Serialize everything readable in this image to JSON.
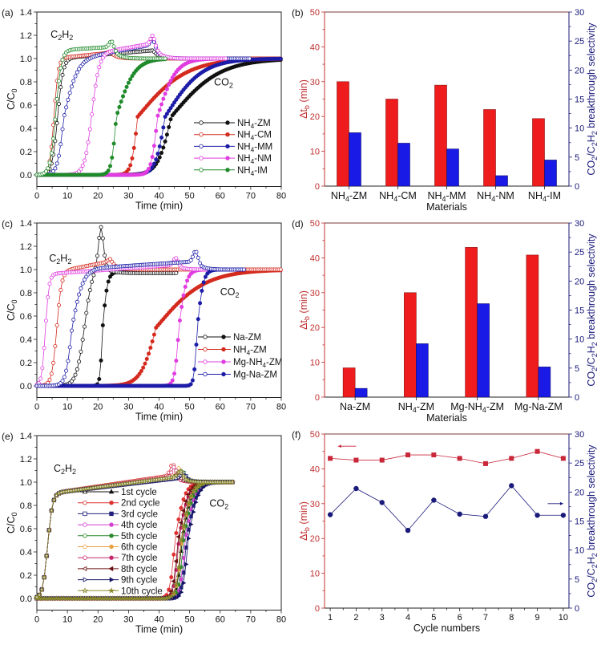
{
  "chart_data": [
    {
      "panel": "(a)",
      "type": "line",
      "xlabel": "Time (min)",
      "ylabel": "C/C_0",
      "xlim": [
        0,
        80
      ],
      "ylim": [
        -0.1,
        1.4
      ],
      "xticks": [
        "0",
        "10",
        "20",
        "30",
        "40",
        "50",
        "60",
        "70",
        "80"
      ],
      "yticks": [
        "0.0",
        "0.2",
        "0.4",
        "0.6",
        "0.8",
        "1.0",
        "1.2",
        "1.4"
      ],
      "annotations": [
        {
          "text": "C_2H_2",
          "x": 4.5,
          "y": 1.18
        },
        {
          "text": "CO_2",
          "x": 58,
          "y": 0.77
        }
      ],
      "series": [
        {
          "label": "NH_4-ZM",
          "color": "#111111",
          "marker": "circle",
          "c2h2": {
            "t50": 6.8,
            "w": 0.9,
            "level_start": 1.0,
            "level_end": 1.07,
            "peak_time": 38,
            "peak_height": 1.07,
            "end": 80
          },
          "co2": {
            "t50": 44,
            "wl": 2.2,
            "wr": 8,
            "end": 80
          }
        },
        {
          "label": "NH_4-CM",
          "color": "#d42a1e",
          "marker": "circle",
          "c2h2": {
            "t50": 5.6,
            "w": 0.7,
            "level_start": 1.0,
            "level_end": 1.05,
            "peak_time": 24,
            "peak_height": 1.06,
            "end": 80
          },
          "co2": {
            "t50": 33,
            "wl": 1.0,
            "wr": 8,
            "end": 80
          }
        },
        {
          "label": "NH_4-MM",
          "color": "#1c1ca8",
          "marker": "circle",
          "c2h2": {
            "t50": 8.8,
            "w": 1.0,
            "wr": 2.2,
            "level_start": 0.98,
            "level_end": 1.12,
            "peak_time": 38,
            "peak_height": 1.17,
            "end": 70
          },
          "co2": {
            "t50": 42,
            "wl": 1.6,
            "wr": 6,
            "end": 80
          }
        },
        {
          "label": "NH_4-NM",
          "color": "#e03ce0",
          "marker": "circle",
          "c2h2": {
            "t50": 18,
            "w": 1.2,
            "level_start": 1.04,
            "level_end": 1.13,
            "peak_time": 38,
            "peak_height": 1.2,
            "end": 62
          },
          "co2": {
            "t50": 39.5,
            "wl": 1.0,
            "wr": 3,
            "end": 62
          }
        },
        {
          "label": "NH_4-IM",
          "color": "#1f8a2a",
          "marker": "circle",
          "c2h2": {
            "t50": 6.2,
            "w": 0.9,
            "level_start": 1.07,
            "level_end": 1.1,
            "peak_time": 24.5,
            "peak_height": 1.15,
            "end": 42
          },
          "co2": {
            "t50": 26,
            "wl": 0.8,
            "wr": 3,
            "end": 42
          }
        }
      ]
    },
    {
      "panel": "(b)",
      "type": "bar",
      "xlabel": "Materials",
      "ylabel": "Δt_b (min)",
      "y2label": "CO_2/C_2H_2 breakthrough selectivity",
      "ylim": [
        0,
        50
      ],
      "y2lim": [
        0,
        30
      ],
      "yticks": [
        "0",
        "10",
        "20",
        "30",
        "40",
        "50"
      ],
      "y2ticks": [
        "0",
        "5",
        "10",
        "15",
        "20",
        "25",
        "30"
      ],
      "categories": [
        "NH_4-ZM",
        "NH_4-CM",
        "NH_4-MM",
        "NH_4-NM",
        "NH_4-IM"
      ],
      "dtb_values": [
        30,
        25,
        29,
        22,
        19.4
      ],
      "selectivity_values": [
        9.2,
        7.4,
        6.4,
        1.8,
        4.5
      ],
      "dtb_color": "#ee1c1c",
      "selectivity_color": "#1a1ae6"
    },
    {
      "panel": "(c)",
      "type": "line",
      "xlabel": "Time (min)",
      "ylabel": "C/C_0",
      "xlim": [
        0,
        80
      ],
      "ylim": [
        -0.1,
        1.4
      ],
      "xticks": [
        "0",
        "10",
        "20",
        "30",
        "40",
        "50",
        "60",
        "70",
        "80"
      ],
      "yticks": [
        "0.0",
        "0.2",
        "0.4",
        "0.6",
        "0.8",
        "1.0",
        "1.2",
        "1.4"
      ],
      "annotations": [
        {
          "text": "C_2H_2",
          "x": 4,
          "y": 1.07
        },
        {
          "text": "CO_2",
          "x": 60,
          "y": 0.78
        }
      ],
      "series": [
        {
          "label": "Na-ZM",
          "color": "#111111",
          "marker": "circle",
          "c2h2": {
            "t50": 15.5,
            "w": 1.3,
            "level_start": 0.98,
            "level_end": 1.08,
            "peak_time": 21,
            "peak_height": 1.38,
            "after_level": 0.97,
            "end": 46
          },
          "co2": {
            "t50": 21.5,
            "wl": 0.4,
            "wr": 0.8,
            "plateau": 0.98,
            "end": 46
          }
        },
        {
          "label": "NH_4-ZM",
          "color": "#d42a1e",
          "marker": "circle",
          "c2h2": {
            "t50": 6.5,
            "w": 0.8,
            "level_start": 0.98,
            "level_end": 1.07,
            "peak_time": 24,
            "peak_height": 1.09,
            "end": 80
          },
          "co2": {
            "t50": 39,
            "wl": 2.5,
            "wr": 8,
            "end": 80
          }
        },
        {
          "label": "Mg-NH_4-ZM",
          "color": "#e03ce0",
          "marker": "circle",
          "c2h2": {
            "t50": 2.8,
            "w": 0.6,
            "level_start": 0.96,
            "level_end": 1.04,
            "peak_time": 45.5,
            "peak_height": 1.1,
            "end": 68
          },
          "co2": {
            "t50": 46.5,
            "wl": 0.7,
            "wr": 1.2,
            "end": 68
          }
        },
        {
          "label": "Mg-Na-ZM",
          "color": "#1c1ca8",
          "marker": "circle",
          "c2h2": {
            "t50": 11.5,
            "w": 1.0,
            "wr": 1.8,
            "level_start": 1.0,
            "level_end": 1.07,
            "peak_time": 52,
            "peak_height": 1.16,
            "end": 68
          },
          "co2": {
            "t50": 52.5,
            "wl": 0.5,
            "wr": 1.0,
            "end": 68
          }
        }
      ]
    },
    {
      "panel": "(d)",
      "type": "bar",
      "xlabel": "Materials",
      "ylabel": "Δt_b (min)",
      "y2label": "CO_2/C_2H_2 breakthrough selectivity",
      "ylim": [
        0,
        50
      ],
      "y2lim": [
        0,
        30
      ],
      "yticks": [
        "0",
        "10",
        "20",
        "30",
        "40",
        "50"
      ],
      "y2ticks": [
        "0",
        "5",
        "10",
        "15",
        "20",
        "25",
        "30"
      ],
      "categories": [
        "Na-ZM",
        "NH_4-ZM",
        "Mg-NH_4-ZM",
        "Mg-Na-ZM"
      ],
      "dtb_values": [
        8.4,
        30,
        43,
        40.8
      ],
      "selectivity_values": [
        1.5,
        9.2,
        16.1,
        5.2
      ],
      "dtb_color": "#ee1c1c",
      "selectivity_color": "#1a1ae6"
    },
    {
      "panel": "(e)",
      "type": "line",
      "xlabel": "Time (min)",
      "ylabel": "C/C_0",
      "xlim": [
        0,
        80
      ],
      "ylim": [
        -0.1,
        1.4
      ],
      "xticks": [
        "0",
        "10",
        "20",
        "30",
        "40",
        "50",
        "60",
        "70",
        "80"
      ],
      "yticks": [
        "0.0",
        "0.2",
        "0.4",
        "0.6",
        "0.8",
        "1.0",
        "1.2",
        "1.4"
      ],
      "annotations": [
        {
          "text": "C_2H_2",
          "x": 5.5,
          "y": 1.09
        },
        {
          "text": "CO_2",
          "x": 56.5,
          "y": 0.79
        }
      ],
      "series": [
        {
          "label": "1st   cycle",
          "color": "#111111",
          "marker": "triangle",
          "c2h2": {
            "t50": 3.5,
            "w": 0.8,
            "level_start": 0.9,
            "level_end": 1.04,
            "peak_time": 47,
            "peak_height": 1.05,
            "end": 64
          },
          "co2": {
            "t50": 47.5,
            "wl": 0.8,
            "wr": 1.6,
            "end": 64
          }
        },
        {
          "label": "2nd  cycle",
          "color": "#e03030",
          "marker": "circle",
          "c2h2": {
            "t50": 3.5,
            "w": 0.8,
            "level_start": 0.9,
            "level_end": 1.06,
            "peak_time": 44.5,
            "peak_height": 1.16,
            "end": 64
          },
          "co2": {
            "t50": 45.2,
            "wl": 0.8,
            "wr": 1.6,
            "end": 64
          }
        },
        {
          "label": "3rd   cycle",
          "color": "#20207a",
          "marker": "square",
          "c2h2": {
            "t50": 3.5,
            "w": 0.8,
            "level_start": 0.9,
            "level_end": 1.04,
            "peak_time": 48,
            "peak_height": 1.08,
            "end": 64
          },
          "co2": {
            "t50": 49,
            "wl": 0.8,
            "wr": 1.6,
            "end": 64
          }
        },
        {
          "label": "4th   cycle",
          "color": "#d040d0",
          "marker": "circle",
          "c2h2": {
            "t50": 3.5,
            "w": 0.8,
            "level_start": 0.9,
            "level_end": 1.05,
            "peak_time": 46.5,
            "peak_height": 1.1,
            "end": 64
          },
          "co2": {
            "t50": 48.5,
            "wl": 0.8,
            "wr": 1.6,
            "end": 64
          }
        },
        {
          "label": "5th   cycle",
          "color": "#2a8a2a",
          "marker": "circle",
          "c2h2": {
            "t50": 3.5,
            "w": 0.8,
            "level_start": 0.9,
            "level_end": 1.05,
            "peak_time": 47.5,
            "peak_height": 1.1,
            "end": 64
          },
          "co2": {
            "t50": 48,
            "wl": 0.8,
            "wr": 1.6,
            "end": 64
          }
        },
        {
          "label": "6th   cycle",
          "color": "#e8a040",
          "marker": "circle",
          "c2h2": {
            "t50": 3.5,
            "w": 0.8,
            "level_start": 0.9,
            "level_end": 1.05,
            "peak_time": 46.5,
            "peak_height": 1.12,
            "end": 64
          },
          "co2": {
            "t50": 47.3,
            "wl": 0.8,
            "wr": 1.6,
            "end": 64
          }
        },
        {
          "label": "7th   cycle",
          "color": "#c8286e",
          "marker": "circle",
          "c2h2": {
            "t50": 3.5,
            "w": 0.8,
            "level_start": 0.9,
            "level_end": 1.05,
            "peak_time": 45,
            "peak_height": 1.13,
            "end": 64
          },
          "co2": {
            "t50": 46.5,
            "wl": 0.8,
            "wr": 1.6,
            "end": 64
          }
        },
        {
          "label": "8th   cycle",
          "color": "#6a1010",
          "marker": "triangle-left",
          "c2h2": {
            "t50": 3.5,
            "w": 0.8,
            "level_start": 0.9,
            "level_end": 1.04,
            "peak_time": 46,
            "peak_height": 1.07,
            "end": 64
          },
          "co2": {
            "t50": 46.2,
            "wl": 0.8,
            "wr": 1.6,
            "end": 64
          }
        },
        {
          "label": "9th   cycle",
          "color": "#141464",
          "marker": "triangle-right",
          "c2h2": {
            "t50": 3.5,
            "w": 0.8,
            "level_start": 0.9,
            "level_end": 1.04,
            "peak_time": 48,
            "peak_height": 1.07,
            "end": 64
          },
          "co2": {
            "t50": 49.5,
            "wl": 0.8,
            "wr": 1.6,
            "end": 64
          }
        },
        {
          "label": "10th cycle",
          "color": "#8a8a30",
          "marker": "star",
          "c2h2": {
            "t50": 3.5,
            "w": 0.8,
            "level_start": 0.9,
            "level_end": 1.05,
            "peak_time": 47,
            "peak_height": 1.1,
            "end": 64
          },
          "co2": {
            "t50": 47.2,
            "wl": 0.8,
            "wr": 1.6,
            "end": 64
          }
        }
      ]
    },
    {
      "panel": "(f)",
      "type": "line",
      "xlabel": "Cycle numbers",
      "ylabel": "Δt_b (min)",
      "y2label": "CO_2/C_2H_2 breakthrough selectivity",
      "xlim": [
        0.78,
        10.22
      ],
      "ylim": [
        0,
        50
      ],
      "y2lim": [
        0,
        30
      ],
      "xticks": [
        "1",
        "2",
        "3",
        "4",
        "5",
        "6",
        "7",
        "8",
        "9",
        "10"
      ],
      "yticks": [
        "0",
        "10",
        "20",
        "30",
        "40",
        "50"
      ],
      "y2ticks": [
        "0",
        "5",
        "10",
        "15",
        "20",
        "25",
        "30"
      ],
      "x": [
        1,
        2,
        3,
        4,
        5,
        6,
        7,
        8,
        9,
        10
      ],
      "dtb_values": [
        43,
        42.5,
        42.5,
        44,
        44,
        43,
        41.5,
        43,
        45,
        43
      ],
      "selectivity_values": [
        16.1,
        20.6,
        18.2,
        13.4,
        18.6,
        16.2,
        15.8,
        21.1,
        16.0,
        16.0
      ],
      "dtb_color": "#c8283a",
      "selectivity_color": "#1a1a7a",
      "arrows": [
        {
          "axis": "left",
          "from_x": 2.0,
          "to_x": 1.3,
          "y": 46.5
        },
        {
          "axis": "right",
          "from_x": 9.4,
          "to_x": 10.0,
          "y": 18
        }
      ]
    }
  ]
}
